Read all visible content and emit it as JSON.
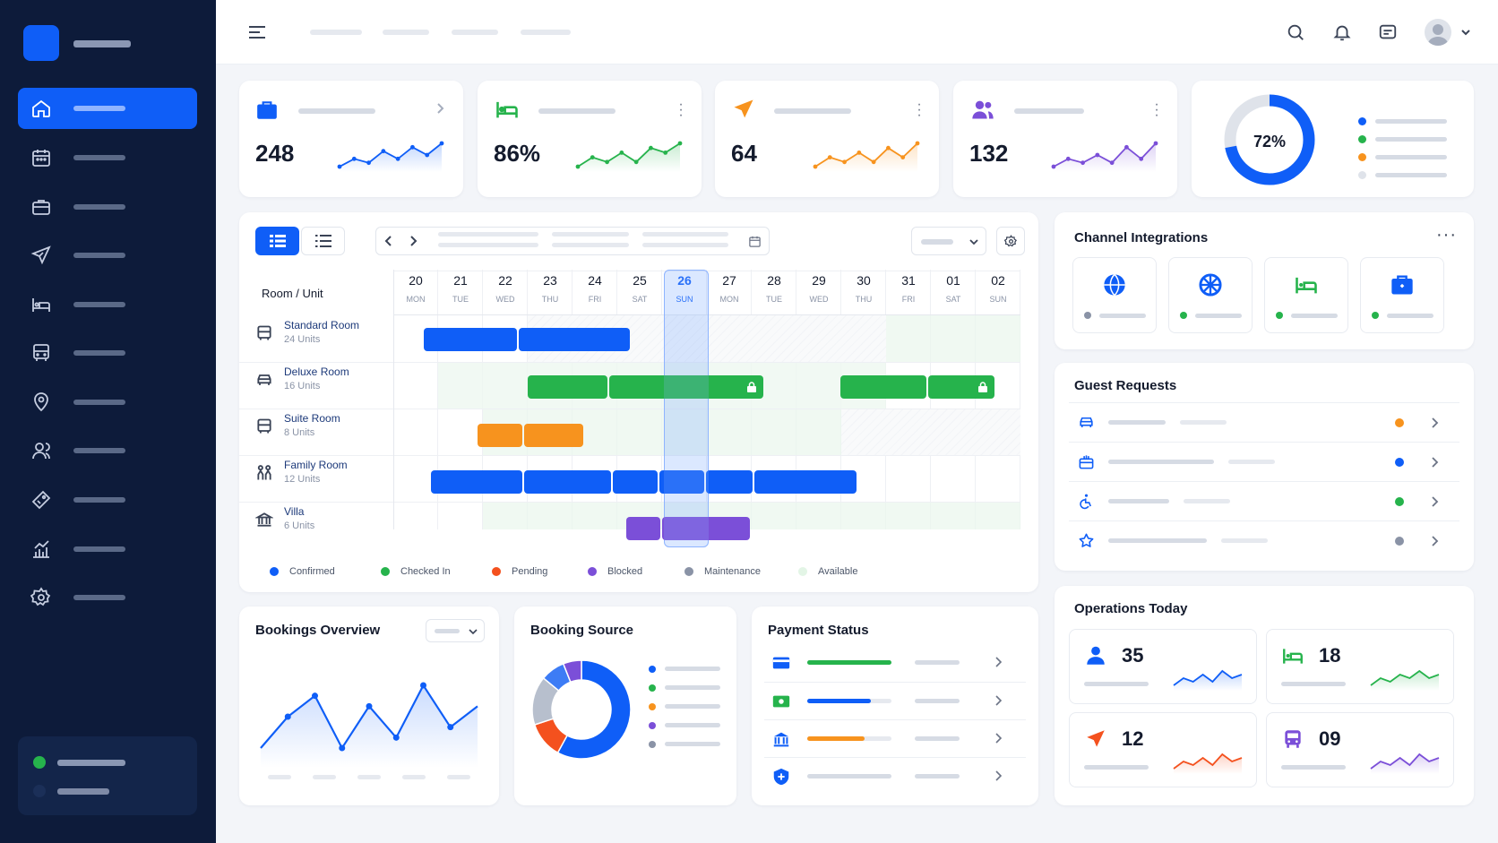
{
  "colors": {
    "accent": "#0f5ef7",
    "green": "#26b34c",
    "orange": "#f7931e",
    "purple": "#7b4fd8",
    "sidebar": "#0d1b3a"
  },
  "sidebar": {
    "items": [
      {
        "icon": "home-icon",
        "active": true
      },
      {
        "icon": "calendar-icon"
      },
      {
        "icon": "briefcase-icon"
      },
      {
        "icon": "airplane-icon"
      },
      {
        "icon": "bed-icon"
      },
      {
        "icon": "bus-icon"
      },
      {
        "icon": "location-pin-icon"
      },
      {
        "icon": "users-icon"
      },
      {
        "icon": "ticket-icon"
      },
      {
        "icon": "analytics-icon"
      },
      {
        "icon": "settings-icon"
      }
    ]
  },
  "topbar": {
    "icons": [
      "menu-icon",
      "search-icon",
      "bell-icon",
      "message-icon",
      "avatar",
      "chevron-down-icon"
    ]
  },
  "kpis": [
    {
      "icon": "briefcase-icon",
      "value": "248",
      "color": "#0f5ef7",
      "trend": [
        3,
        5,
        4,
        7,
        5,
        8,
        6,
        9
      ]
    },
    {
      "icon": "bed-icon",
      "value": "86%",
      "color": "#26b34c",
      "trend": [
        3,
        5,
        4,
        6,
        4,
        7,
        6,
        8
      ]
    },
    {
      "icon": "airplane-icon",
      "value": "64",
      "color": "#f7931e",
      "trend": [
        3,
        5,
        4,
        6,
        4,
        7,
        5,
        8
      ]
    },
    {
      "icon": "users-icon",
      "value": "132",
      "color": "#7b4fd8",
      "trend": [
        3,
        5,
        4,
        6,
        4,
        8,
        5,
        9
      ]
    }
  ],
  "occupancy": {
    "value": "72%",
    "percent": 72
  },
  "calendar": {
    "header": "Room / Unit",
    "days": [
      {
        "num": "20",
        "dow": "MON"
      },
      {
        "num": "21",
        "dow": "TUE"
      },
      {
        "num": "22",
        "dow": "WED"
      },
      {
        "num": "23",
        "dow": "THU"
      },
      {
        "num": "24",
        "dow": "FRI"
      },
      {
        "num": "25",
        "dow": "SAT"
      },
      {
        "num": "26",
        "dow": "SUN",
        "today": true
      },
      {
        "num": "27",
        "dow": "MON"
      },
      {
        "num": "28",
        "dow": "TUE"
      },
      {
        "num": "29",
        "dow": "WED"
      },
      {
        "num": "30",
        "dow": "THU"
      },
      {
        "num": "31",
        "dow": "FRI"
      },
      {
        "num": "01",
        "dow": "SAT"
      },
      {
        "num": "02",
        "dow": "SUN"
      }
    ],
    "rooms": [
      {
        "name": "Standard Room",
        "units": "24 Units",
        "icon": "bus-icon"
      },
      {
        "name": "Deluxe Room",
        "units": "16 Units",
        "icon": "car-icon"
      },
      {
        "name": "Suite Room",
        "units": "8 Units",
        "icon": "bus-icon"
      },
      {
        "name": "Family Room",
        "units": "12 Units",
        "icon": "family-icon"
      },
      {
        "name": "Villa",
        "units": "6 Units",
        "icon": "bank-icon"
      }
    ],
    "legend": [
      {
        "label": "Confirmed",
        "color": "#0f5ef7"
      },
      {
        "label": "Checked In",
        "color": "#26b34c"
      },
      {
        "label": "Pending",
        "color": "#f4511e"
      },
      {
        "label": "Blocked",
        "color": "#7b4fd8"
      },
      {
        "label": "Maintenance",
        "color": "#8a93a6"
      },
      {
        "label": "Available",
        "color": "#e3f5e6"
      }
    ]
  },
  "channel_integrations": {
    "title": "Channel Integrations",
    "items": [
      {
        "icon": "globe-icon",
        "status_color": "#8a93a6"
      },
      {
        "icon": "compass-icon",
        "status_color": "#26b34c"
      },
      {
        "icon": "bed-icon",
        "status_color": "#26b34c"
      },
      {
        "icon": "briefcase-icon",
        "status_color": "#26b34c"
      }
    ]
  },
  "guest_requests": {
    "title": "Guest Requests",
    "items": [
      {
        "icon": "car-icon",
        "status_color": "#f7931e"
      },
      {
        "icon": "food-icon",
        "status_color": "#0f5ef7"
      },
      {
        "icon": "accessibility-icon",
        "status_color": "#26b34c"
      },
      {
        "icon": "star-icon",
        "status_color": "#8a93a6"
      }
    ]
  },
  "bookings_overview": {
    "title": "Bookings Overview",
    "trend": [
      3,
      6,
      8,
      3,
      7,
      4,
      9,
      5,
      7
    ]
  },
  "booking_source": {
    "title": "Booking Source",
    "slices": [
      {
        "color": "#0f5ef7",
        "value": 58
      },
      {
        "color": "#f4511e",
        "value": 12
      },
      {
        "color": "#b7bfcd",
        "value": 16
      },
      {
        "color": "#3d7cf5",
        "value": 8
      },
      {
        "color": "#7b4fd8",
        "value": 6
      }
    ],
    "legend_colors": [
      "#0f5ef7",
      "#26b34c",
      "#f7931e",
      "#7b4fd8",
      "#8a93a6"
    ]
  },
  "payment_status": {
    "title": "Payment Status",
    "rows": [
      {
        "icon": "credit-card-icon",
        "color": "#26b34c",
        "progress": 1.0
      },
      {
        "icon": "cash-icon",
        "color": "#0f5ef7",
        "progress": 0.75
      },
      {
        "icon": "bank-icon",
        "color": "#f7931e",
        "progress": 0.68
      },
      {
        "icon": "shield-icon",
        "color": "#8a93a6",
        "progress": 0
      }
    ]
  },
  "operations": {
    "title": "Operations Today",
    "items": [
      {
        "icon": "user-icon",
        "value": "35",
        "color": "#0f5ef7",
        "trend": [
          3,
          5,
          4,
          6,
          4,
          7,
          5,
          6
        ]
      },
      {
        "icon": "bed-icon",
        "value": "18",
        "color": "#26b34c",
        "trend": [
          3,
          5,
          4,
          6,
          5,
          7,
          5,
          6
        ]
      },
      {
        "icon": "airplane-icon",
        "value": "12",
        "color": "#f4511e",
        "trend": [
          3,
          5,
          4,
          6,
          4,
          7,
          5,
          6
        ]
      },
      {
        "icon": "bus-icon",
        "value": "09",
        "color": "#7b4fd8",
        "trend": [
          3,
          5,
          4,
          6,
          4,
          7,
          5,
          6
        ]
      }
    ]
  }
}
